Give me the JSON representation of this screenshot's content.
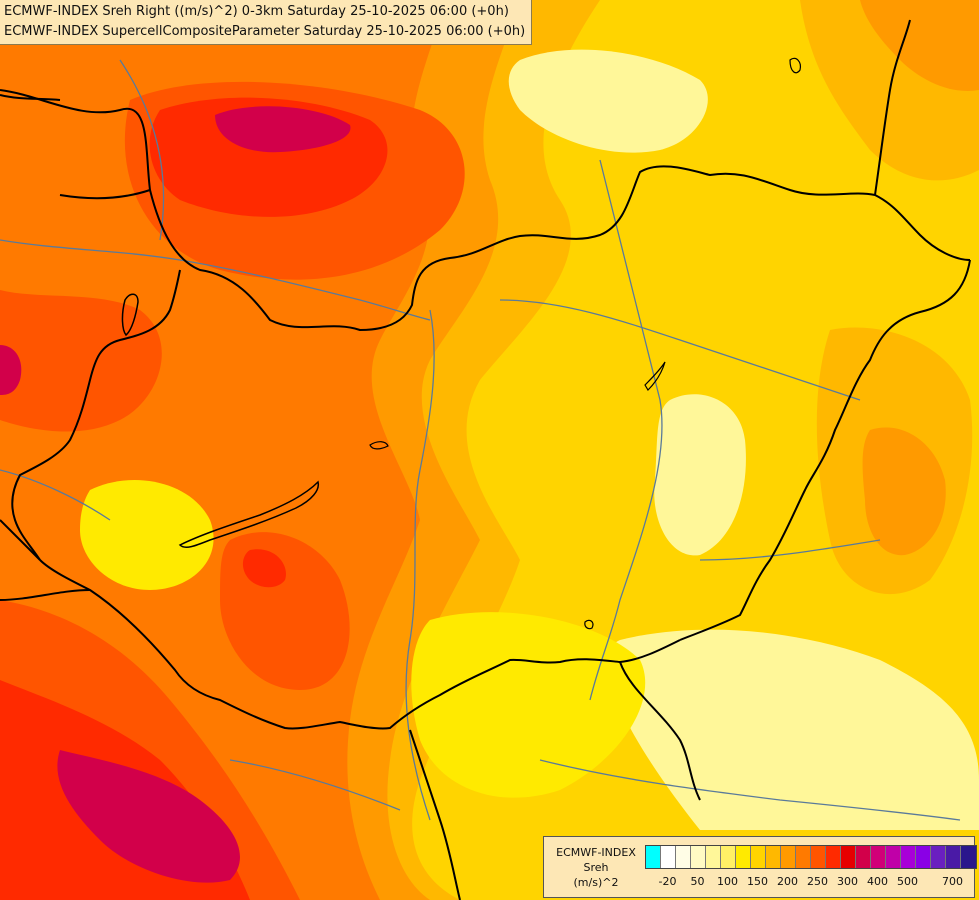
{
  "header": {
    "line1": "ECMWF-INDEX Sreh Right ((m/s)^2) 0-3km Saturday 25-10-2025 06:00 (+0h)",
    "line2": "ECMWF-INDEX SupercellCompositeParameter Saturday 25-10-2025 06:00 (+0h)"
  },
  "legend": {
    "title1": "ECMWF-INDEX",
    "title2": "Sreh",
    "title3": "(m/s)^2",
    "colors": [
      "#00ffff",
      "#ffffff",
      "#fffde6",
      "#fffbc4",
      "#fff799",
      "#fff066",
      "#ffea00",
      "#ffd400",
      "#ffb800",
      "#ff9a00",
      "#ff7a00",
      "#ff5500",
      "#ff2a00",
      "#e60000",
      "#d2004a",
      "#d10078",
      "#c000a8",
      "#a800d8",
      "#8a00e6",
      "#6a1fc0",
      "#4a1aa6",
      "#2a168c"
    ],
    "ticks": [
      "-20",
      "50",
      "100",
      "150",
      "200",
      "250",
      "300",
      "400",
      "500",
      "700"
    ]
  },
  "map": {
    "colors": {
      "base": "#ffd400",
      "pale": "#fff799",
      "light": "#ffea00",
      "orange1": "#ffb800",
      "orange2": "#ff9a00",
      "orange3": "#ff7a00",
      "red1": "#ff5500",
      "red2": "#ff2a00",
      "magenta": "#d2004a",
      "border": "#000000",
      "river": "#5a7a9a"
    }
  }
}
